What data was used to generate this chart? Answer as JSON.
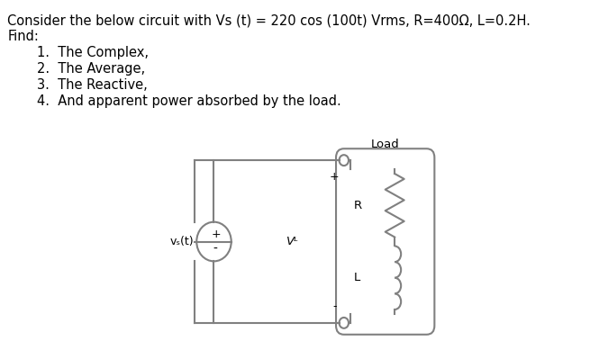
{
  "title_line1": "Consider the below circuit with Vs (t) = 220 cos (100t) Vrms, R=400Ω, L=0.2H.",
  "title_line2": "Find:",
  "items": [
    "1.  The Complex,",
    "2.  The Average,",
    "3.  The Reactive,",
    "4.  And apparent power absorbed by the load."
  ],
  "label_load": "Load",
  "label_R": "R",
  "label_L": "L",
  "label_vs": "vₛ(t)",
  "label_vL": "Vᴸ",
  "label_plus_src": "+",
  "label_minus_src": "-",
  "label_plus": "+",
  "label_minus": "-",
  "bg_color": "#ffffff",
  "circuit_color": "#808080",
  "text_color": "#000000",
  "font_size_main": 10.5,
  "font_size_labels": 9.5,
  "font_size_circuit": 9.0
}
